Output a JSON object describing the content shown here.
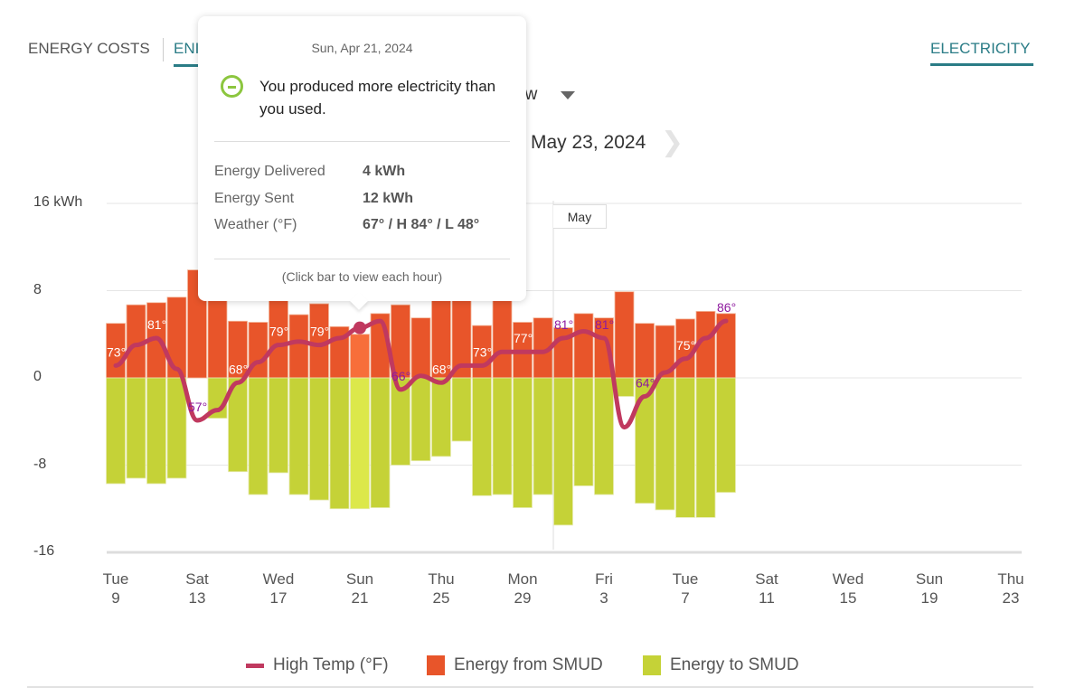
{
  "tabs": [
    {
      "label": "ENERGY COSTS",
      "active": false
    },
    {
      "label": "ENI",
      "active": true
    }
  ],
  "right_tab": {
    "label": "ELECTRICITY",
    "active": true
  },
  "view_select": {
    "value": "ew"
  },
  "date_range": {
    "end": "May 23, 2024"
  },
  "colors": {
    "accent": "#2a7c86",
    "from": "#E8552A",
    "to": "#C5D237",
    "from_hl": "#F76E3A",
    "to_hl": "#DCE84A",
    "temp": "#C0395F",
    "label_out": "#8E1A9E"
  },
  "tooltip": {
    "date": "Sun, Apr 21, 2024",
    "icon": "minus-circle-icon",
    "message": "You produced more electricity than you used.",
    "rows": [
      {
        "label": "Energy Delivered",
        "value": "4 kWh"
      },
      {
        "label": "Energy Sent",
        "value": "12 kWh"
      },
      {
        "label": "Weather (°F)",
        "value": "67° / H 84° / L 48°"
      }
    ],
    "footer": "(Click bar to view each hour)"
  },
  "chart_data": {
    "type": "bar",
    "ylabel_unit": "kWh",
    "ylim": [
      -16,
      16
    ],
    "yticks": [
      {
        "value": 16,
        "label": "16 kWh"
      },
      {
        "value": 8,
        "label": "8"
      },
      {
        "value": 0,
        "label": "0"
      },
      {
        "value": -8,
        "label": "-8"
      },
      {
        "value": -16,
        "label": "-16"
      }
    ],
    "grid": true,
    "month_marker": "May",
    "x_ticks": [
      {
        "dow": "Tue",
        "day": "9"
      },
      {
        "dow": "Sat",
        "day": "13"
      },
      {
        "dow": "Wed",
        "day": "17"
      },
      {
        "dow": "Sun",
        "day": "21"
      },
      {
        "dow": "Thu",
        "day": "25"
      },
      {
        "dow": "Mon",
        "day": "29"
      },
      {
        "dow": "Fri",
        "day": "3"
      },
      {
        "dow": "Tue",
        "day": "7"
      },
      {
        "dow": "Sat",
        "day": "11"
      },
      {
        "dow": "Wed",
        "day": "15"
      },
      {
        "dow": "Sun",
        "day": "19"
      },
      {
        "dow": "Thu",
        "day": "23"
      }
    ],
    "x_range": [
      "2024-04-09",
      "2024-05-23"
    ],
    "dates": [
      "Apr 9",
      "Apr 10",
      "Apr 11",
      "Apr 12",
      "Apr 13",
      "Apr 14",
      "Apr 15",
      "Apr 16",
      "Apr 17",
      "Apr 18",
      "Apr 19",
      "Apr 20",
      "Apr 21",
      "Apr 22",
      "Apr 23",
      "Apr 24",
      "Apr 25",
      "Apr 26",
      "Apr 27",
      "Apr 28",
      "Apr 29",
      "Apr 30",
      "May 1",
      "May 2",
      "May 3",
      "May 4",
      "May 5",
      "May 6",
      "May 7",
      "May 8",
      "May 9"
    ],
    "highlighted": "Apr 21",
    "series": [
      {
        "name": "Energy from SMUD",
        "type": "bar",
        "values": [
          5.0,
          6.7,
          6.9,
          7.4,
          9.9,
          7.5,
          5.2,
          5.1,
          7.5,
          5.8,
          6.8,
          4.7,
          4,
          5.9,
          6.7,
          5.5,
          7.5,
          7.5,
          4.8,
          7.1,
          5.1,
          5.5,
          4.6,
          5.9,
          5.5,
          7.9,
          5.0,
          4.8,
          5.4,
          6.1,
          5.9
        ]
      },
      {
        "name": "Energy to SMUD",
        "type": "bar",
        "values": [
          -9.7,
          -9.2,
          -9.7,
          -9.2,
          0,
          -3.7,
          -8.6,
          -10.7,
          -8.7,
          -10.7,
          -11.2,
          -12.0,
          -12,
          -11.9,
          -8.0,
          -7.6,
          -7.2,
          -5.8,
          -10.8,
          -10.7,
          -11.9,
          -10.7,
          -13.5,
          -9.9,
          -10.7,
          -1.7,
          -11.5,
          -12.1,
          -12.8,
          -12.8,
          -10.5
        ]
      },
      {
        "name": "High Temp (°F)",
        "type": "line",
        "values": [
          73,
          79,
          81,
          72,
          57,
          60,
          68,
          74,
          79,
          80,
          79,
          81,
          84,
          86,
          66,
          70,
          68,
          73,
          73,
          77,
          77,
          77,
          81,
          83,
          81,
          55,
          64,
          71,
          75,
          81,
          86
        ]
      }
    ],
    "temp_labels": [
      {
        "index": 0,
        "text": "73°"
      },
      {
        "index": 2,
        "text": "81°"
      },
      {
        "index": 4,
        "text": "57°"
      },
      {
        "index": 6,
        "text": "68°"
      },
      {
        "index": 8,
        "text": "79°"
      },
      {
        "index": 10,
        "text": "79°"
      },
      {
        "index": 14,
        "text": "66°"
      },
      {
        "index": 16,
        "text": "68°"
      },
      {
        "index": 18,
        "text": "73°"
      },
      {
        "index": 20,
        "text": "77°"
      },
      {
        "index": 22,
        "text": "81°"
      },
      {
        "index": 24,
        "text": "81°"
      },
      {
        "index": 26,
        "text": "64°"
      },
      {
        "index": 28,
        "text": "75°"
      },
      {
        "index": 30,
        "text": "86°"
      }
    ]
  },
  "legend": [
    {
      "label": "High Temp (°F)",
      "swatch": "line",
      "color": "#C0395F"
    },
    {
      "label": "Energy from SMUD",
      "swatch": "square",
      "color": "#E8552A"
    },
    {
      "label": "Energy to SMUD",
      "swatch": "square",
      "color": "#C5D237"
    }
  ]
}
